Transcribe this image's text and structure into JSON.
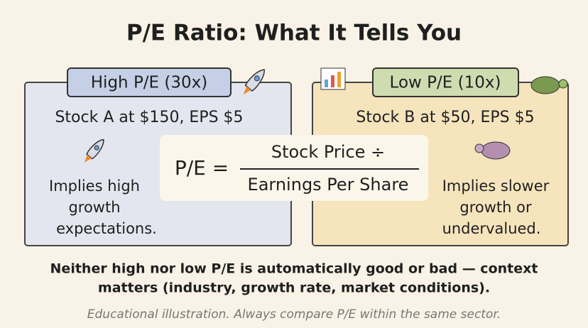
{
  "title": "P/E Ratio: What It Tells You",
  "panels": [
    {
      "label": "High P/E (30x)",
      "stock": "Stock A at $150, EPS $5",
      "implication": [
        "Implies high",
        "growth",
        "expectations."
      ]
    },
    {
      "label": "Low P/E (10x)",
      "stock": "Stock B at $50, EPS $5",
      "implication": [
        "Implies slower",
        "growth or",
        "undervalued."
      ]
    }
  ],
  "formula": {
    "lhs": "P/E =",
    "numerator": "Stock Price ÷",
    "denominator": "Earnings Per Share"
  },
  "note": [
    "Neither high nor low P/E is automatically good or bad — context",
    "matters (industry, growth rate, market conditions)."
  ],
  "footer": "Educational illustration. Always compare P/E within the same sector."
}
